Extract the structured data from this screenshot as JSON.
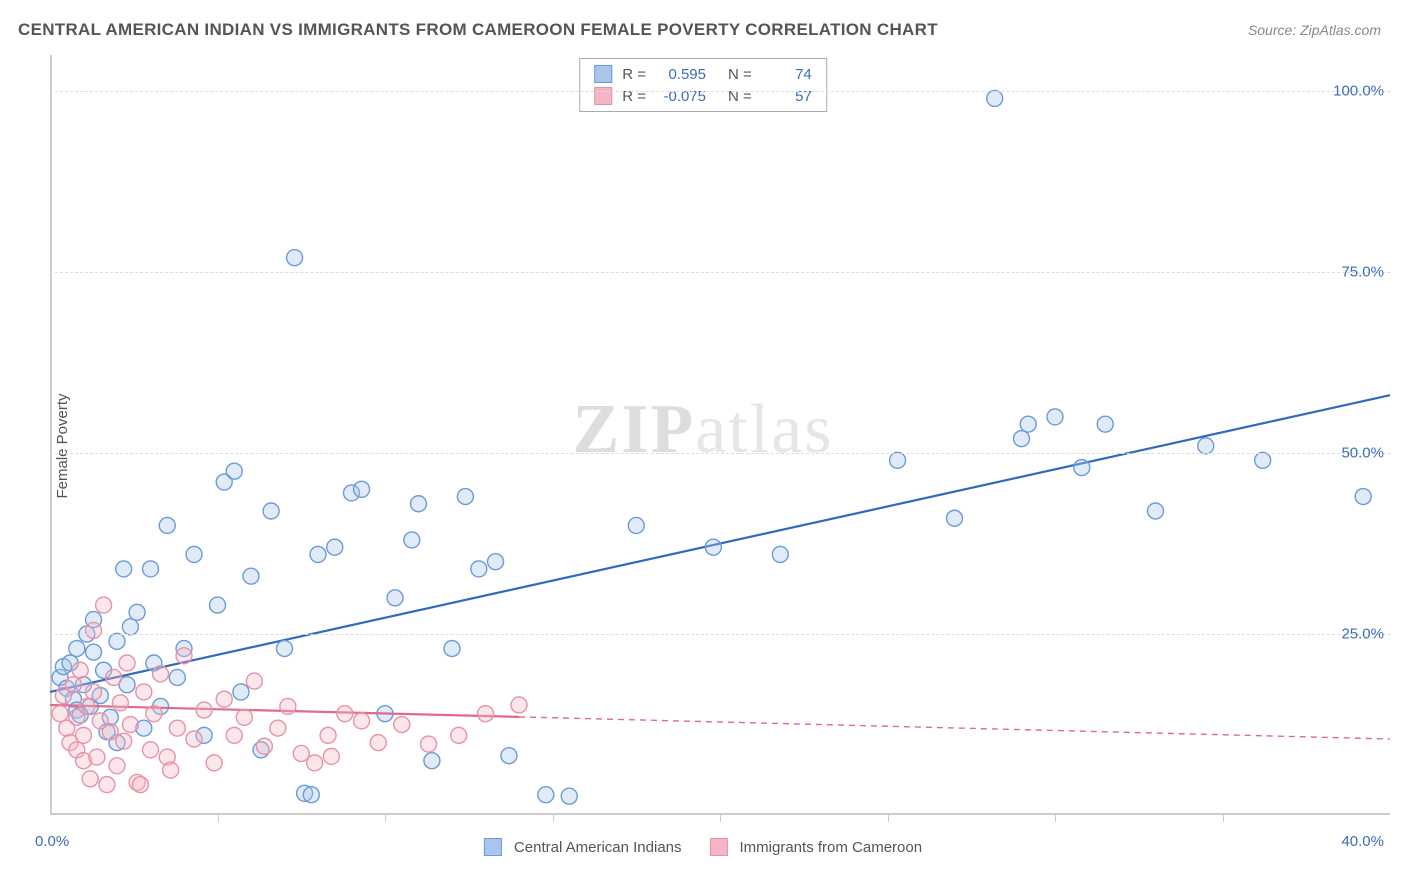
{
  "title": "CENTRAL AMERICAN INDIAN VS IMMIGRANTS FROM CAMEROON FEMALE POVERTY CORRELATION CHART",
  "source": "Source: ZipAtlas.com",
  "ylabel": "Female Poverty",
  "watermark_a": "ZIP",
  "watermark_b": "atlas",
  "chart": {
    "type": "scatter",
    "background_color": "#ffffff",
    "grid_color": "#dddddd",
    "axis_color": "#cccccc",
    "xlim": [
      0,
      40
    ],
    "ylim": [
      0,
      105
    ],
    "xtick_labels": [
      "0.0%",
      "40.0%"
    ],
    "ytick_labels": [
      "25.0%",
      "50.0%",
      "75.0%",
      "100.0%"
    ],
    "ytick_values": [
      25,
      50,
      75,
      100
    ],
    "xtick_minor": [
      5,
      10,
      15,
      20,
      25,
      30,
      35
    ],
    "marker_radius": 8,
    "marker_stroke_width": 1.4,
    "marker_fill_opacity": 0.35,
    "line_width": 2.2,
    "series": [
      {
        "name": "Central American Indians",
        "color_fill": "#a8c6ec",
        "color_stroke": "#6a9bd8",
        "line_color": "#2e6bc0",
        "R": "0.595",
        "N": "74",
        "regression": {
          "x1": 0,
          "y1": 17,
          "x2": 40,
          "y2": 58,
          "solid_until_x": 40
        },
        "points": [
          [
            0.3,
            19
          ],
          [
            0.4,
            20.5
          ],
          [
            0.5,
            17.5
          ],
          [
            0.6,
            21
          ],
          [
            0.7,
            16
          ],
          [
            0.8,
            14.5
          ],
          [
            0.8,
            23
          ],
          [
            1.0,
            18
          ],
          [
            1.1,
            25
          ],
          [
            1.2,
            15
          ],
          [
            1.3,
            22.5
          ],
          [
            1.3,
            27
          ],
          [
            1.5,
            16.5
          ],
          [
            1.6,
            20
          ],
          [
            1.8,
            13.5
          ],
          [
            2.0,
            24
          ],
          [
            2.0,
            10
          ],
          [
            2.2,
            34
          ],
          [
            2.3,
            18
          ],
          [
            2.4,
            26
          ],
          [
            2.6,
            28
          ],
          [
            2.8,
            12
          ],
          [
            3.0,
            34
          ],
          [
            3.1,
            21
          ],
          [
            3.3,
            15
          ],
          [
            3.5,
            40
          ],
          [
            3.8,
            19
          ],
          [
            4.0,
            23
          ],
          [
            4.3,
            36
          ],
          [
            4.6,
            11
          ],
          [
            5.0,
            29
          ],
          [
            5.2,
            46
          ],
          [
            5.5,
            47.5
          ],
          [
            5.7,
            17
          ],
          [
            6.0,
            33
          ],
          [
            6.3,
            9
          ],
          [
            6.6,
            42
          ],
          [
            7.0,
            23
          ],
          [
            7.3,
            77
          ],
          [
            7.6,
            3
          ],
          [
            7.8,
            2.8
          ],
          [
            8.0,
            36
          ],
          [
            8.5,
            37
          ],
          [
            9.0,
            44.5
          ],
          [
            9.3,
            45
          ],
          [
            10.0,
            14
          ],
          [
            10.3,
            30
          ],
          [
            10.8,
            38
          ],
          [
            11.0,
            43
          ],
          [
            11.4,
            7.5
          ],
          [
            12.0,
            23
          ],
          [
            12.4,
            44
          ],
          [
            12.8,
            34
          ],
          [
            13.3,
            35
          ],
          [
            13.7,
            8.2
          ],
          [
            14.8,
            2.8
          ],
          [
            15.5,
            2.6
          ],
          [
            17.5,
            40
          ],
          [
            19.8,
            37
          ],
          [
            21.8,
            36
          ],
          [
            25.3,
            49
          ],
          [
            27.0,
            41
          ],
          [
            28.2,
            99
          ],
          [
            29.0,
            52
          ],
          [
            29.2,
            54
          ],
          [
            30.0,
            55
          ],
          [
            30.8,
            48
          ],
          [
            31.5,
            54
          ],
          [
            33.0,
            42
          ],
          [
            34.5,
            51
          ],
          [
            36.2,
            49
          ],
          [
            39.2,
            44
          ],
          [
            0.9,
            13.8
          ],
          [
            1.7,
            11.5
          ]
        ]
      },
      {
        "name": "Immigrants from Cameroon",
        "color_fill": "#f4b6c5",
        "color_stroke": "#e892a8",
        "line_color": "#e06a8a",
        "R": "-0.075",
        "N": "57",
        "regression": {
          "x1": 0,
          "y1": 15.2,
          "x2": 40,
          "y2": 10.5,
          "solid_until_x": 14
        },
        "points": [
          [
            0.3,
            14
          ],
          [
            0.4,
            16.5
          ],
          [
            0.5,
            12
          ],
          [
            0.6,
            10
          ],
          [
            0.7,
            18
          ],
          [
            0.8,
            13.5
          ],
          [
            0.8,
            9
          ],
          [
            0.9,
            20
          ],
          [
            1.0,
            11
          ],
          [
            1.0,
            7.5
          ],
          [
            1.1,
            15
          ],
          [
            1.2,
            5
          ],
          [
            1.3,
            17
          ],
          [
            1.3,
            25.5
          ],
          [
            1.4,
            8
          ],
          [
            1.5,
            13
          ],
          [
            1.6,
            29
          ],
          [
            1.7,
            4.2
          ],
          [
            1.8,
            11.5
          ],
          [
            1.9,
            19
          ],
          [
            2.0,
            6.8
          ],
          [
            2.1,
            15.5
          ],
          [
            2.2,
            10.2
          ],
          [
            2.3,
            21
          ],
          [
            2.4,
            12.5
          ],
          [
            2.6,
            4.5
          ],
          [
            2.7,
            4.2
          ],
          [
            2.8,
            17
          ],
          [
            3.0,
            9
          ],
          [
            3.1,
            14
          ],
          [
            3.3,
            19.5
          ],
          [
            3.5,
            8
          ],
          [
            3.6,
            6.2
          ],
          [
            3.8,
            12
          ],
          [
            4.0,
            22
          ],
          [
            4.3,
            10.5
          ],
          [
            4.6,
            14.5
          ],
          [
            4.9,
            7.2
          ],
          [
            5.2,
            16
          ],
          [
            5.5,
            11
          ],
          [
            5.8,
            13.5
          ],
          [
            6.1,
            18.5
          ],
          [
            6.4,
            9.5
          ],
          [
            6.8,
            12
          ],
          [
            7.1,
            15
          ],
          [
            7.5,
            8.5
          ],
          [
            7.9,
            7.2
          ],
          [
            8.3,
            11
          ],
          [
            8.4,
            8.1
          ],
          [
            8.8,
            14
          ],
          [
            9.3,
            13
          ],
          [
            9.8,
            10
          ],
          [
            10.5,
            12.5
          ],
          [
            11.3,
            9.8
          ],
          [
            12.2,
            11
          ],
          [
            13.0,
            14
          ],
          [
            14.0,
            15.2
          ]
        ]
      }
    ]
  },
  "legend_top": {
    "r_label": "R =",
    "n_label": "N ="
  },
  "legend_bottom": {
    "items": [
      "Central American Indians",
      "Immigrants from Cameroon"
    ]
  }
}
